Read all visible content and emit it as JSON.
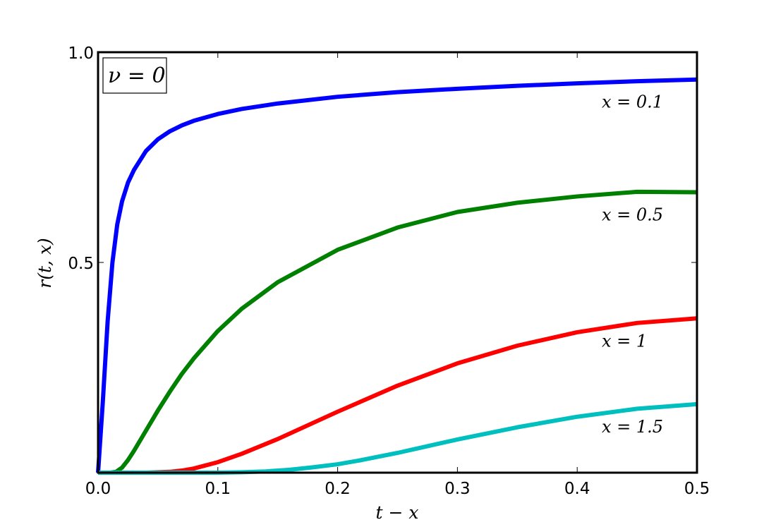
{
  "chart_data": {
    "type": "line",
    "title": "",
    "xlabel": "t − x",
    "ylabel": "r(t, x)",
    "xlim": [
      0.0,
      0.5
    ],
    "ylim": [
      0.0,
      1.0
    ],
    "xticks": [
      0.0,
      0.1,
      0.2,
      0.3,
      0.4,
      0.5
    ],
    "xtick_labels": [
      "0.0",
      "0.1",
      "0.2",
      "0.3",
      "0.4",
      "0.5"
    ],
    "yticks": [
      0.5,
      1.0
    ],
    "ytick_labels": [
      "0.5",
      "1.0"
    ],
    "grid": false,
    "annotation_box": "ν = 0",
    "series": [
      {
        "name": "x = 0.1",
        "color": "#0000ff",
        "x": [
          0.0,
          0.004,
          0.008,
          0.012,
          0.016,
          0.02,
          0.025,
          0.03,
          0.04,
          0.05,
          0.06,
          0.07,
          0.08,
          0.1,
          0.12,
          0.15,
          0.2,
          0.25,
          0.3,
          0.35,
          0.4,
          0.45,
          0.5
        ],
        "y": [
          0.0,
          0.17,
          0.36,
          0.5,
          0.59,
          0.645,
          0.69,
          0.72,
          0.765,
          0.793,
          0.812,
          0.826,
          0.837,
          0.853,
          0.865,
          0.878,
          0.894,
          0.905,
          0.913,
          0.92,
          0.926,
          0.931,
          0.935
        ]
      },
      {
        "name": "x = 0.5",
        "color": "#008000",
        "x": [
          0.0,
          0.01,
          0.015,
          0.02,
          0.025,
          0.03,
          0.04,
          0.05,
          0.06,
          0.07,
          0.08,
          0.1,
          0.12,
          0.15,
          0.2,
          0.25,
          0.3,
          0.35,
          0.4,
          0.45,
          0.5
        ],
        "y": [
          0.0,
          0.0,
          0.002,
          0.012,
          0.03,
          0.052,
          0.1,
          0.148,
          0.193,
          0.235,
          0.272,
          0.337,
          0.39,
          0.453,
          0.53,
          0.583,
          0.62,
          0.642,
          0.657,
          0.668,
          0.667
        ]
      },
      {
        "name": "x = 1",
        "color": "#ff0000",
        "x": [
          0.0,
          0.02,
          0.04,
          0.06,
          0.07,
          0.08,
          0.1,
          0.12,
          0.15,
          0.2,
          0.25,
          0.3,
          0.35,
          0.4,
          0.45,
          0.5
        ],
        "y": [
          0.0,
          0.0,
          0.0,
          0.002,
          0.005,
          0.01,
          0.025,
          0.045,
          0.08,
          0.145,
          0.207,
          0.26,
          0.302,
          0.334,
          0.356,
          0.367
        ]
      },
      {
        "name": "x = 1.5",
        "color": "#00bfbf",
        "x": [
          0.0,
          0.05,
          0.1,
          0.12,
          0.14,
          0.16,
          0.18,
          0.2,
          0.22,
          0.25,
          0.3,
          0.35,
          0.4,
          0.45,
          0.5
        ],
        "y": [
          0.0,
          0.0,
          0.0,
          0.001,
          0.003,
          0.007,
          0.013,
          0.02,
          0.03,
          0.047,
          0.079,
          0.108,
          0.133,
          0.152,
          0.163
        ]
      }
    ]
  }
}
